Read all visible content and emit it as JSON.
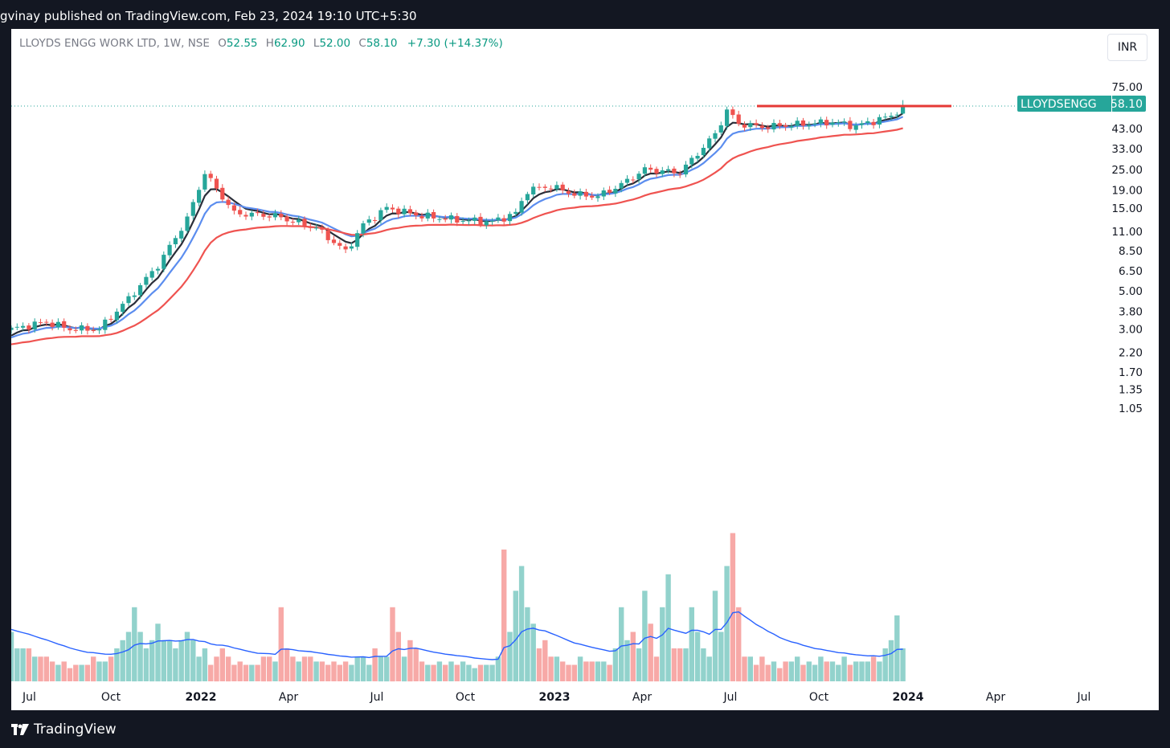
{
  "publish_line": "gvinay published on TradingView.com, Feb 23, 2024 19:10 UTC+5:30",
  "header": {
    "symbol": "LLOYDS ENGG WORK LTD, 1W, NSE",
    "o_label": "O",
    "o": "52.55",
    "h_label": "H",
    "h": "62.90",
    "l_label": "L",
    "l": "52.00",
    "c_label": "C",
    "c": "58.10",
    "change": "+7.30 (+14.37%)"
  },
  "currency": "INR",
  "price_tag": {
    "ticker": "LLOYDSENGG",
    "price": "58.10"
  },
  "footer_brand": "TradingView",
  "colors": {
    "up": "#26a69a",
    "down": "#ef5350",
    "ema_short": "#2a2e39",
    "ema_mid": "#5b8def",
    "ema_long": "#ef5350",
    "vol_ma": "#2962ff",
    "resistance": "#e53935",
    "tag": "#26a69a"
  },
  "chart_data": {
    "type": "candlestick",
    "scale": "log",
    "interval": "1W",
    "grid": false,
    "y_ticks": [
      "75.00",
      "43.00",
      "33.00",
      "25.00",
      "19.00",
      "15.00",
      "11.00",
      "8.50",
      "6.50",
      "5.00",
      "3.80",
      "3.00",
      "2.20",
      "1.70",
      "1.35",
      "1.05"
    ],
    "x_ticks": [
      "Jul",
      "Oct",
      "2022",
      "Apr",
      "Jul",
      "Oct",
      "2023",
      "Apr",
      "Jul",
      "Oct",
      "2024",
      "Apr",
      "Jul"
    ],
    "y_range": [
      0.95,
      90
    ],
    "anchors": [
      {
        "w": 0,
        "p": 3.0
      },
      {
        "w": 6,
        "p": 3.3
      },
      {
        "w": 10,
        "p": 3.0
      },
      {
        "w": 15,
        "p": 3.0
      },
      {
        "w": 20,
        "p": 4.5
      },
      {
        "w": 25,
        "p": 7.0
      },
      {
        "w": 30,
        "p": 13.0
      },
      {
        "w": 33,
        "p": 24.0
      },
      {
        "w": 38,
        "p": 14.0
      },
      {
        "w": 45,
        "p": 13.5
      },
      {
        "w": 52,
        "p": 11.5
      },
      {
        "w": 57,
        "p": 8.4
      },
      {
        "w": 60,
        "p": 12.0
      },
      {
        "w": 64,
        "p": 15.0
      },
      {
        "w": 70,
        "p": 13.5
      },
      {
        "w": 76,
        "p": 12.8
      },
      {
        "w": 82,
        "p": 12.5
      },
      {
        "w": 86,
        "p": 14.0
      },
      {
        "w": 88,
        "p": 19.0
      },
      {
        "w": 92,
        "p": 20.0
      },
      {
        "w": 96,
        "p": 18.0
      },
      {
        "w": 100,
        "p": 17.5
      },
      {
        "w": 104,
        "p": 20.5
      },
      {
        "w": 108,
        "p": 25.0
      },
      {
        "w": 114,
        "p": 24.0
      },
      {
        "w": 120,
        "p": 40.0
      },
      {
        "w": 122,
        "p": 55.0
      },
      {
        "w": 124,
        "p": 46.0
      },
      {
        "w": 128,
        "p": 44.0
      },
      {
        "w": 136,
        "p": 46.0
      },
      {
        "w": 140,
        "p": 47.0
      },
      {
        "w": 144,
        "p": 44.5
      },
      {
        "w": 150,
        "p": 51.0
      },
      {
        "w": 152,
        "p": 58.1
      }
    ],
    "volume_pattern": [
      0.3,
      0.2,
      0.2,
      0.2,
      0.15,
      0.15,
      0.15,
      0.12,
      0.1,
      0.12,
      0.08,
      0.1,
      0.1,
      0.1,
      0.15,
      0.12,
      0.12,
      0.15,
      0.2,
      0.25,
      0.3,
      0.45,
      0.3,
      0.2,
      0.25,
      0.35,
      0.25,
      0.25,
      0.2,
      0.25,
      0.3,
      0.25,
      0.15,
      0.2,
      0.1,
      0.15,
      0.2,
      0.15,
      0.1,
      0.12,
      0.1,
      0.1,
      0.1,
      0.15,
      0.15,
      0.12,
      0.45,
      0.2,
      0.15,
      0.12,
      0.15,
      0.15,
      0.12,
      0.12,
      0.1,
      0.12,
      0.1,
      0.12,
      0.1,
      0.15,
      0.15,
      0.1,
      0.2,
      0.15,
      0.15,
      0.45,
      0.3,
      0.15,
      0.25,
      0.2,
      0.12,
      0.1,
      0.1,
      0.12,
      0.1,
      0.12,
      0.1,
      0.12,
      0.1,
      0.08,
      0.1,
      0.1,
      0.1,
      0.15,
      0.8,
      0.3,
      0.55,
      0.7,
      0.45,
      0.35,
      0.2,
      0.25,
      0.15,
      0.15,
      0.12,
      0.1,
      0.1,
      0.15,
      0.12,
      0.12,
      0.12,
      0.12,
      0.1,
      0.2,
      0.45,
      0.25,
      0.3,
      0.2,
      0.55,
      0.35,
      0.15,
      0.45,
      0.65,
      0.2,
      0.2,
      0.2,
      0.45,
      0.3,
      0.2,
      0.15,
      0.55,
      0.3,
      0.7,
      0.9,
      0.45,
      0.15,
      0.15,
      0.1,
      0.15,
      0.1,
      0.12,
      0.08,
      0.12,
      0.12,
      0.15,
      0.1,
      0.12,
      0.1,
      0.15,
      0.12,
      0.12,
      0.1,
      0.15,
      0.1,
      0.12,
      0.12,
      0.12,
      0.15,
      0.12,
      0.2,
      0.25,
      0.4,
      0.2,
      0.5
    ]
  }
}
